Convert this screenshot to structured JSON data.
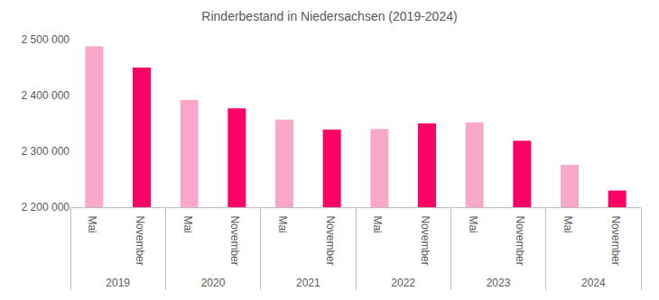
{
  "chart_data": {
    "type": "bar",
    "title": "Rinderbestand in Niedersachsen (2019-2024)",
    "categories": [
      {
        "group": "2019",
        "label": "Mai"
      },
      {
        "group": "2019",
        "label": "November"
      },
      {
        "group": "2020",
        "label": "Mai"
      },
      {
        "group": "2020",
        "label": "November"
      },
      {
        "group": "2021",
        "label": "Mai"
      },
      {
        "group": "2021",
        "label": "November"
      },
      {
        "group": "2022",
        "label": "Mai"
      },
      {
        "group": "2022",
        "label": "November"
      },
      {
        "group": "2023",
        "label": "Mai"
      },
      {
        "group": "2023",
        "label": "November"
      },
      {
        "group": "2024",
        "label": "Mai"
      },
      {
        "group": "2024",
        "label": "November"
      }
    ],
    "values": [
      2488000,
      2450000,
      2392000,
      2377000,
      2357000,
      2339000,
      2340000,
      2350000,
      2352000,
      2319000,
      2276000,
      2230000
    ],
    "colors": [
      "#f9a8c9",
      "#ff0066",
      "#f9a8c9",
      "#ff0066",
      "#f9a8c9",
      "#ff0066",
      "#f9a8c9",
      "#ff0066",
      "#f9a8c9",
      "#ff0066",
      "#f9a8c9",
      "#ff0066"
    ],
    "ylim": [
      2200000,
      2500000
    ],
    "yticks": [
      {
        "value": 2200000,
        "label": "2 200 000"
      },
      {
        "value": 2300000,
        "label": "2 300 000"
      },
      {
        "value": 2400000,
        "label": "2 400 000"
      },
      {
        "value": 2500000,
        "label": "2 500 000"
      }
    ],
    "grid": false
  }
}
